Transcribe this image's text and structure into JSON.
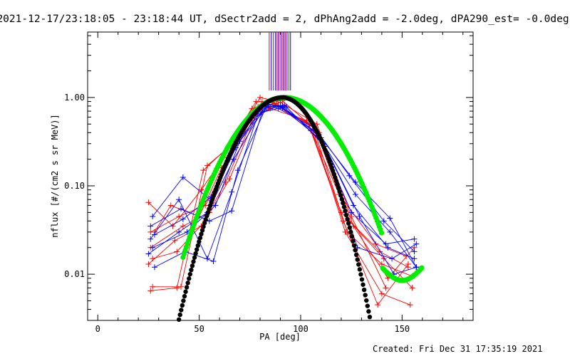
{
  "header": {
    "title": "2021-12-17/23:18:05 - 23:18:44 UT, dSectr2add = 2, dPhAng2add = -2.0deg, dPA290_est= -0.0deg"
  },
  "footer": {
    "created": "Created: Fri Dec 31 17:35:19 2021"
  },
  "chart_data": {
    "type": "scatter",
    "xlabel": "PA [deg]",
    "ylabel": "nflux [#/(cm2 s sr MeV)]",
    "xlim": [
      -5,
      185
    ],
    "ylim": [
      0.003,
      5.5
    ],
    "yscale": "log",
    "xticks": [
      0,
      50,
      100,
      150
    ],
    "yticks": [
      {
        "value": 1.0,
        "label": "1.00"
      },
      {
        "value": 0.1,
        "label": "0.10"
      },
      {
        "value": 0.01,
        "label": "0.01"
      }
    ],
    "colors": {
      "red": "#ff0000",
      "blue": "#0000ff",
      "green": "#00ee00",
      "black": "#000000"
    },
    "vertical_markers": {
      "y_from": 1.2,
      "lines": [
        {
          "x": 84.5,
          "color": "#ff0000"
        },
        {
          "x": 85.5,
          "color": "#0000ff"
        },
        {
          "x": 86.5,
          "color": "#ff0000"
        },
        {
          "x": 87.5,
          "color": "#0000ff"
        },
        {
          "x": 88.3,
          "color": "#ff0000"
        },
        {
          "x": 89.0,
          "color": "#0000ff"
        },
        {
          "x": 89.8,
          "color": "#ff0000"
        },
        {
          "x": 90.5,
          "color": "#0000ff"
        },
        {
          "x": 91.2,
          "color": "#ff0000"
        },
        {
          "x": 91.8,
          "color": "#0000ff"
        },
        {
          "x": 92.5,
          "color": "#ff0000"
        },
        {
          "x": 93.3,
          "color": "#0000ff"
        },
        {
          "x": 94.2,
          "color": "#ff0000"
        },
        {
          "x": 95.0,
          "color": "#0000ff"
        }
      ]
    },
    "series": [
      {
        "color": "#ff0000",
        "marker": "plus",
        "x": [
          25,
          37,
          51,
          62,
          76,
          86,
          104,
          120,
          139,
          153
        ],
        "y": [
          0.065,
          0.035,
          0.09,
          0.21,
          0.75,
          0.88,
          0.5,
          0.05,
          0.018,
          0.012
        ]
      },
      {
        "color": "#ff0000",
        "marker": "plus",
        "x": [
          26,
          40,
          53,
          65,
          79,
          87,
          107,
          124,
          141,
          155
        ],
        "y": [
          0.03,
          0.045,
          0.06,
          0.2,
          0.78,
          0.85,
          0.45,
          0.04,
          0.015,
          0.007
        ]
      },
      {
        "color": "#ff0000",
        "marker": "plus",
        "x": [
          26,
          39,
          52,
          64,
          78,
          88,
          106,
          122,
          140,
          154
        ],
        "y": [
          0.0065,
          0.007,
          0.15,
          0.27,
          0.9,
          0.86,
          0.43,
          0.03,
          0.006,
          0.0045
        ]
      },
      {
        "color": "#ff0000",
        "marker": "plus",
        "x": [
          27,
          41,
          54,
          66,
          80,
          90,
          108,
          125,
          142
        ],
        "y": [
          0.0072,
          0.0072,
          0.17,
          0.29,
          1.0,
          0.88,
          0.5,
          0.045,
          0.007
        ]
      },
      {
        "color": "#ff0000",
        "marker": "plus",
        "x": [
          25,
          38,
          51,
          63,
          77,
          89,
          105,
          121,
          138,
          153
        ],
        "y": [
          0.013,
          0.024,
          0.035,
          0.11,
          0.62,
          0.8,
          0.42,
          0.04,
          0.0045,
          0.013
        ]
      },
      {
        "color": "#ff0000",
        "marker": "plus",
        "x": [
          28,
          36,
          50,
          61,
          75,
          85,
          103,
          119,
          137,
          152
        ],
        "y": [
          0.03,
          0.06,
          0.045,
          0.16,
          0.55,
          0.75,
          0.55,
          0.08,
          0.022,
          0.016
        ]
      },
      {
        "color": "#ff0000",
        "marker": "plus",
        "x": [
          26,
          42,
          55,
          67,
          81,
          91,
          109,
          126,
          143,
          156
        ],
        "y": [
          0.02,
          0.035,
          0.05,
          0.28,
          0.9,
          0.92,
          0.4,
          0.035,
          0.009,
          0.02
        ]
      },
      {
        "color": "#ff0000",
        "marker": "plus",
        "x": [
          27,
          39,
          53,
          65,
          79,
          88,
          106,
          123,
          140,
          155
        ],
        "y": [
          0.015,
          0.018,
          0.04,
          0.12,
          0.7,
          0.82,
          0.48,
          0.03,
          0.013,
          0.0095
        ]
      },
      {
        "color": "#0000ff",
        "marker": "plus",
        "x": [
          27,
          42,
          56,
          68,
          82,
          91,
          110,
          127,
          144,
          157
        ],
        "y": [
          0.045,
          0.125,
          0.068,
          0.27,
          0.85,
          0.8,
          0.35,
          0.11,
          0.043,
          0.012
        ]
      },
      {
        "color": "#0000ff",
        "marker": "plus",
        "x": [
          26,
          40,
          54,
          66,
          80,
          90,
          108,
          125,
          142,
          156
        ],
        "y": [
          0.025,
          0.07,
          0.015,
          0.085,
          0.75,
          0.78,
          0.4,
          0.05,
          0.022,
          0.025
        ]
      },
      {
        "color": "#0000ff",
        "marker": "plus",
        "x": [
          28,
          43,
          57,
          69,
          83,
          92,
          111,
          128,
          145,
          157
        ],
        "y": [
          0.012,
          0.018,
          0.014,
          0.15,
          0.78,
          0.82,
          0.3,
          0.02,
          0.015,
          0.022
        ]
      },
      {
        "color": "#0000ff",
        "marker": "plus",
        "x": [
          26,
          41,
          55,
          66,
          81,
          89,
          107,
          124,
          141,
          156
        ],
        "y": [
          0.035,
          0.055,
          0.04,
          0.052,
          0.68,
          0.75,
          0.45,
          0.13,
          0.04,
          0.018
        ]
      },
      {
        "color": "#0000ff",
        "marker": "plus",
        "x": [
          27,
          44,
          58,
          70,
          84,
          93,
          112,
          129,
          146,
          157
        ],
        "y": [
          0.02,
          0.03,
          0.06,
          0.32,
          0.82,
          0.78,
          0.28,
          0.045,
          0.01,
          0.012
        ]
      },
      {
        "color": "#0000ff",
        "marker": "plus",
        "x": [
          25,
          40,
          54,
          67,
          81,
          90,
          109,
          126,
          143,
          156
        ],
        "y": [
          0.017,
          0.03,
          0.05,
          0.2,
          0.7,
          0.8,
          0.38,
          0.06,
          0.02,
          0.015
        ]
      },
      {
        "color": "#0000ff",
        "marker": "plus",
        "x": [
          28,
          42,
          56,
          68,
          83,
          91,
          110,
          127,
          144,
          157
        ],
        "y": [
          0.028,
          0.042,
          0.075,
          0.3,
          0.8,
          0.77,
          0.33,
          0.08,
          0.03,
          0.012
        ]
      },
      {
        "color": "#00ee00",
        "marker": "dot",
        "model": "green",
        "x_range": [
          42,
          160
        ]
      },
      {
        "color": "#000000",
        "marker": "dot",
        "model": "black",
        "x_range": [
          40,
          135
        ]
      }
    ]
  }
}
